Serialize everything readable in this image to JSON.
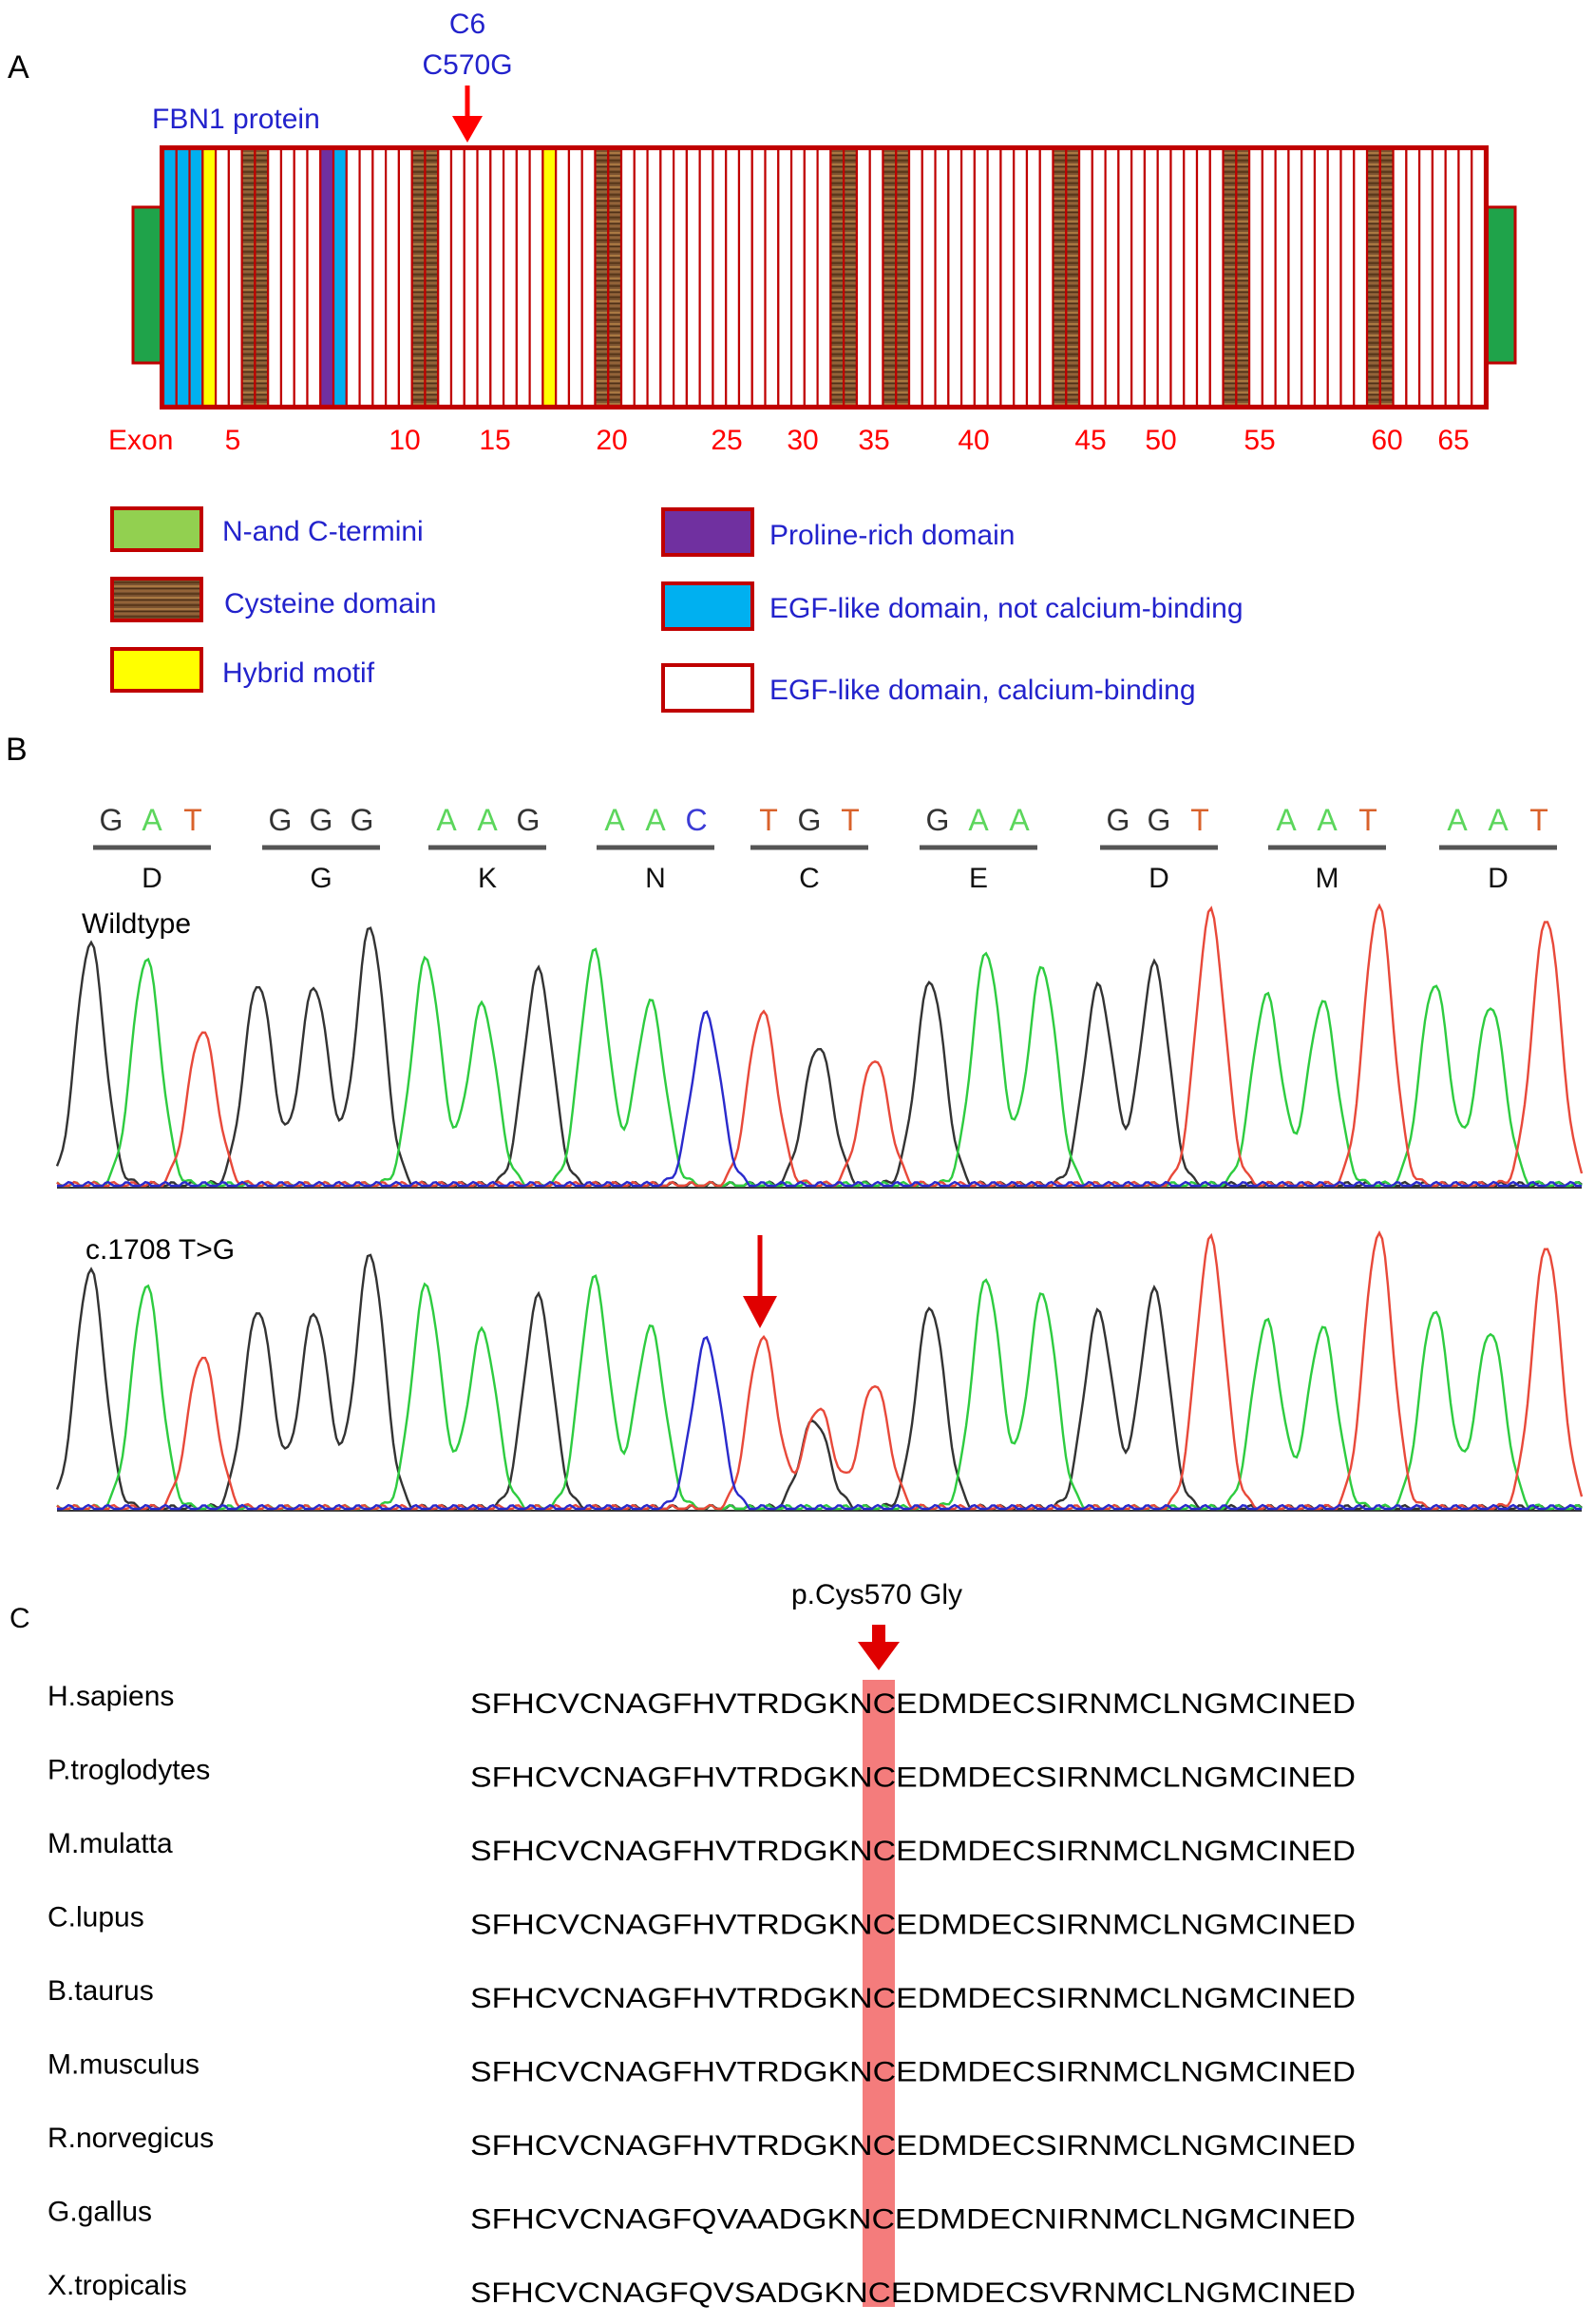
{
  "panels": {
    "a": "A",
    "b": "B",
    "c": "C"
  },
  "protein": {
    "name": "FBN1 protein",
    "mutation_label_1": "C6",
    "mutation_label_2": "C570G",
    "exon_axis": {
      "prefix": "Exon",
      "labels": [
        "5",
        "10",
        "15",
        "20",
        "25",
        "30",
        "35",
        "40",
        "45",
        "50",
        "55",
        "60",
        "65"
      ]
    },
    "domains_sequence": "N E E E H W W C C W W W W P E W W W W W C C W W W W W W W W H W W W C C W W W W W W W W W W W W W W W W C C W W C C W W W W W W W W W W W C C W W W W W W W W W W W C C W W W W W W W W W C C W W W W W W W Z",
    "colors": {
      "terminus": "#1fa34a",
      "terminus_legend": "#92d050",
      "outline": "#c00000",
      "egf_non_ca": "#00b0f0",
      "hybrid": "#ffff00",
      "proline": "#7030a0",
      "cysteine_dark": "#5c3a1c",
      "cysteine_light": "#a97842",
      "label_blue": "#2222cc",
      "label_red": "#ff0000"
    }
  },
  "legend": [
    {
      "key": "terminus",
      "label": "N-and C-termini"
    },
    {
      "key": "cysteine",
      "label": "Cysteine domain"
    },
    {
      "key": "hybrid",
      "label": "Hybrid motif"
    },
    {
      "key": "proline",
      "label": "Proline-rich domain"
    },
    {
      "key": "egf_non_ca",
      "label": "EGF-like domain, not calcium-binding"
    },
    {
      "key": "egf_ca",
      "label": "EGF-like domain, calcium-binding"
    }
  ],
  "sequencing": {
    "codons": [
      {
        "bases": [
          "G",
          "A",
          "T"
        ],
        "aa": "D"
      },
      {
        "bases": [
          "G",
          "G",
          "G"
        ],
        "aa": "G"
      },
      {
        "bases": [
          "A",
          "A",
          "G"
        ],
        "aa": "K"
      },
      {
        "bases": [
          "A",
          "A",
          "C"
        ],
        "aa": "N"
      },
      {
        "bases": [
          "T",
          "G",
          "T"
        ],
        "aa": "C"
      },
      {
        "bases": [
          "G",
          "A",
          "A"
        ],
        "aa": "E"
      },
      {
        "bases": [
          "G",
          "G",
          "T"
        ],
        "aa": "D"
      },
      {
        "bases": [
          "A",
          "A",
          "T"
        ],
        "aa": "M"
      },
      {
        "bases": [
          "A",
          "A",
          "T"
        ],
        "aa": "D"
      }
    ],
    "base_colors": {
      "G": "#333333",
      "A": "#2ecc40",
      "T": "#e8493a",
      "C": "#2a2acc"
    },
    "base_label_colors": {
      "G": "#333333",
      "A": "#5cd65c",
      "T": "#d9622b",
      "C": "#3b3bd6"
    },
    "wildtype_label": "Wildtype",
    "mutant_label": "c.1708 T>G",
    "peak_heights": [
      0.78,
      0.73,
      0.5,
      0.65,
      0.64,
      0.83,
      0.73,
      0.58,
      0.69,
      0.75,
      0.59,
      0.55,
      0.56,
      0.45,
      0.41,
      0.66,
      0.75,
      0.7,
      0.64,
      0.71,
      0.88,
      0.61,
      0.59,
      0.9,
      0.65,
      0.58,
      0.86
    ]
  },
  "alignment": {
    "mutation_label": "p.Cys570 Gly",
    "highlight_color": "#f47c7c",
    "rows": [
      {
        "species": "H.sapiens",
        "seq": "SFHCVCNAGFHVTRDGKNCEDMDECSIRNMCLNGMCINED"
      },
      {
        "species": "P.troglodytes",
        "seq": "SFHCVCNAGFHVTRDGKNCEDMDECSIRNMCLNGMCINED"
      },
      {
        "species": "M.mulatta",
        "seq": "SFHCVCNAGFHVTRDGKNCEDMDECSIRNMCLNGMCINED"
      },
      {
        "species": "C.lupus",
        "seq": "SFHCVCNAGFHVTRDGKNCEDMDECSIRNMCLNGMCINED"
      },
      {
        "species": "B.taurus",
        "seq": "SFHCVCNAGFHVTRDGKNCEDMDECSIRNMCLNGMCINED"
      },
      {
        "species": "M.musculus",
        "seq": "SFHCVCNAGFHVTRDGKNCEDMDECSIRNMCLNGMCINED"
      },
      {
        "species": "R.norvegicus",
        "seq": "SFHCVCNAGFHVTRDGKNCEDMDECSIRNMCLNGMCINED"
      },
      {
        "species": "G.gallus",
        "seq": "SFHCVCNAGFQVAADGKNCEDMDECNIRNMCLNGMCINED"
      },
      {
        "species": "X.tropicalis",
        "seq": "SFHCVCNAGFQVSADGKNCEDMDECSVRNMCLNGMCINED"
      }
    ]
  }
}
